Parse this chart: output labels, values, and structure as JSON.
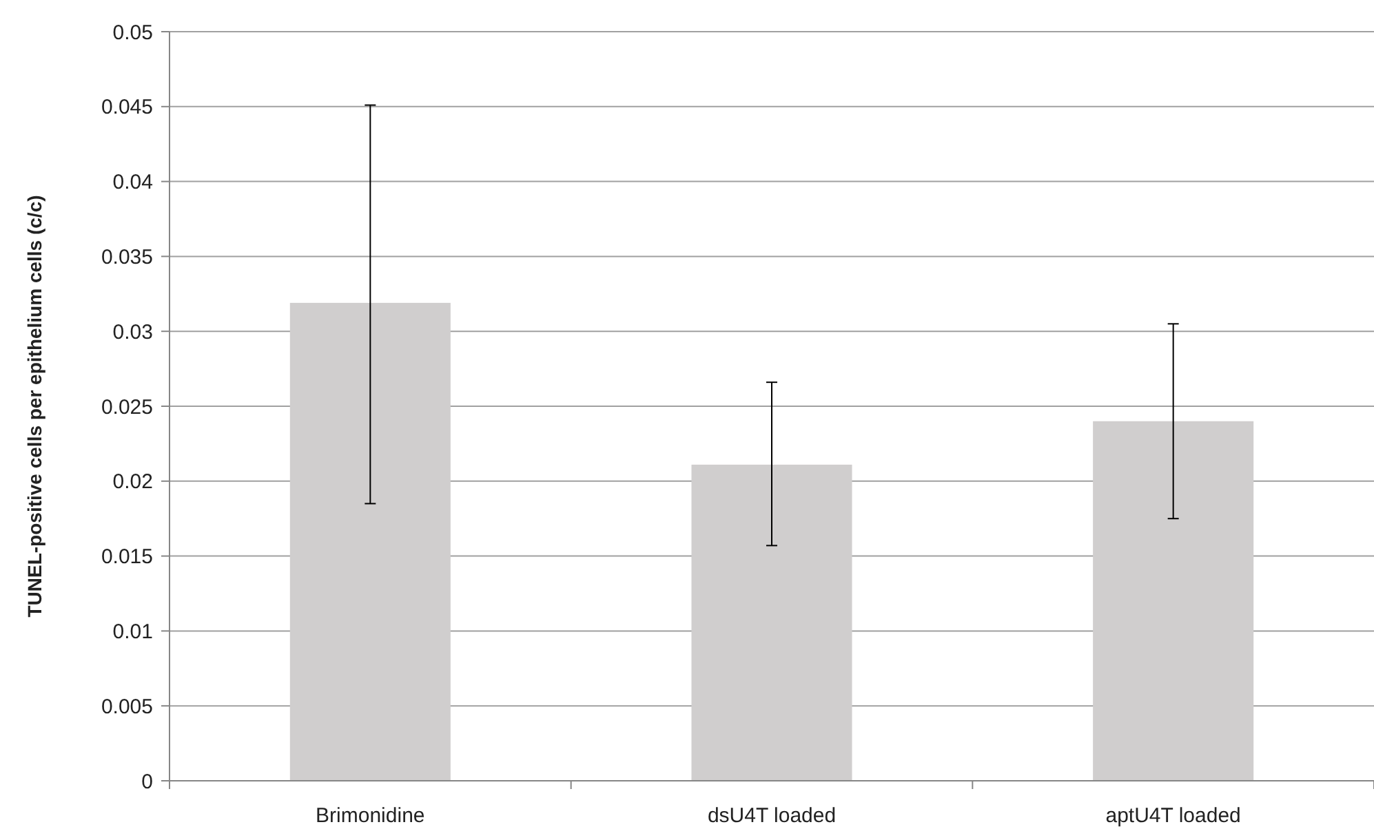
{
  "chart_data": {
    "type": "bar",
    "ylabel": "TUNEL-positive cells per epithelium cells (c/c)",
    "categories": [
      "Brimonidine",
      "dsU4T loaded",
      "aptU4T loaded"
    ],
    "values": [
      0.0319,
      0.0211,
      0.024
    ],
    "errors": [
      [
        0.0185,
        0.0451
      ],
      [
        0.0157,
        0.0266
      ],
      [
        0.0175,
        0.0305
      ]
    ],
    "color": "#d0cece",
    "ylim": [
      0,
      0.05
    ],
    "yticks": [
      0,
      0.005,
      0.01,
      0.015,
      0.02,
      0.025,
      0.03,
      0.035,
      0.04,
      0.045,
      0.05
    ],
    "grid": "y"
  }
}
